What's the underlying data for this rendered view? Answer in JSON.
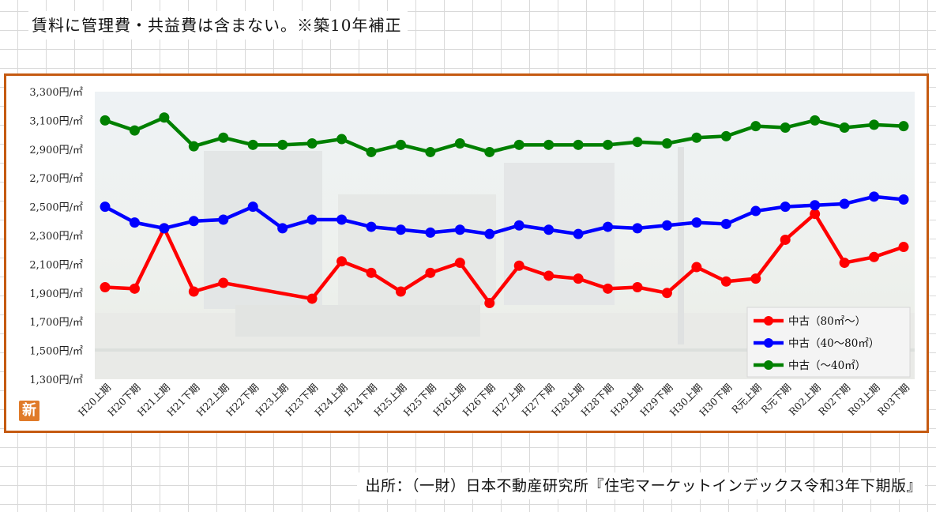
{
  "header_note": "賃料に管理費・共益費は含まない。※築10年補正",
  "source_note": "出所：（一財）日本不動産研究所『住宅マーケットインデックス令和3年下期版』",
  "logo_text": "新",
  "chart_data": {
    "type": "line",
    "title": "",
    "xlabel": "",
    "ylabel": "",
    "ylim": [
      1300,
      3300
    ],
    "yticks": [
      1300,
      1500,
      1700,
      1900,
      2100,
      2300,
      2500,
      2700,
      2900,
      3100,
      3300
    ],
    "ytick_labels": [
      "1,300円/㎡",
      "1,500円/㎡",
      "1,700円/㎡",
      "1,900円/㎡",
      "2,100円/㎡",
      "2,300円/㎡",
      "2,500円/㎡",
      "2,700円/㎡",
      "2,900円/㎡",
      "3,100円/㎡",
      "3,300円/㎡"
    ],
    "categories": [
      "H20上期",
      "H20下期",
      "H21上期",
      "H21下期",
      "H22上期",
      "H22下期",
      "H23上期",
      "H23下期",
      "H24上期",
      "H24下期",
      "H25上期",
      "H25下期",
      "H26上期",
      "H26下期",
      "H27上期",
      "H27下期",
      "H28上期",
      "H28下期",
      "H29上期",
      "H29下期",
      "H30上期",
      "H30下期",
      "R元上期",
      "R元下期",
      "R02上期",
      "R02下期",
      "R03上期",
      "R03下期"
    ],
    "legend_position": "bottom-right",
    "grid": false,
    "series": [
      {
        "name": "中古（80㎡～）",
        "color": "#ff0000",
        "values": [
          1940,
          1930,
          2350,
          1910,
          1970,
          null,
          null,
          1860,
          2120,
          2040,
          1910,
          2040,
          2110,
          1830,
          2090,
          2020,
          2000,
          1930,
          1940,
          1900,
          2080,
          1980,
          2000,
          2270,
          2450,
          2110,
          2150,
          2220
        ]
      },
      {
        "name": "中古（40～80㎡）",
        "color": "#0000ff",
        "values": [
          2500,
          2390,
          2350,
          2400,
          2410,
          2500,
          2350,
          2410,
          2410,
          2360,
          2340,
          2320,
          2340,
          2310,
          2370,
          2340,
          2310,
          2360,
          2350,
          2370,
          2390,
          2380,
          2470,
          2500,
          2510,
          2520,
          2570,
          2550
        ]
      },
      {
        "name": "中古（～40㎡）",
        "color": "#008000",
        "values": [
          3100,
          3030,
          3120,
          2920,
          2980,
          2930,
          2930,
          2940,
          2970,
          2880,
          2930,
          2880,
          2940,
          2880,
          2930,
          2930,
          2930,
          2930,
          2950,
          2940,
          2980,
          2990,
          3060,
          3050,
          3100,
          3050,
          3070,
          3060
        ]
      }
    ]
  }
}
